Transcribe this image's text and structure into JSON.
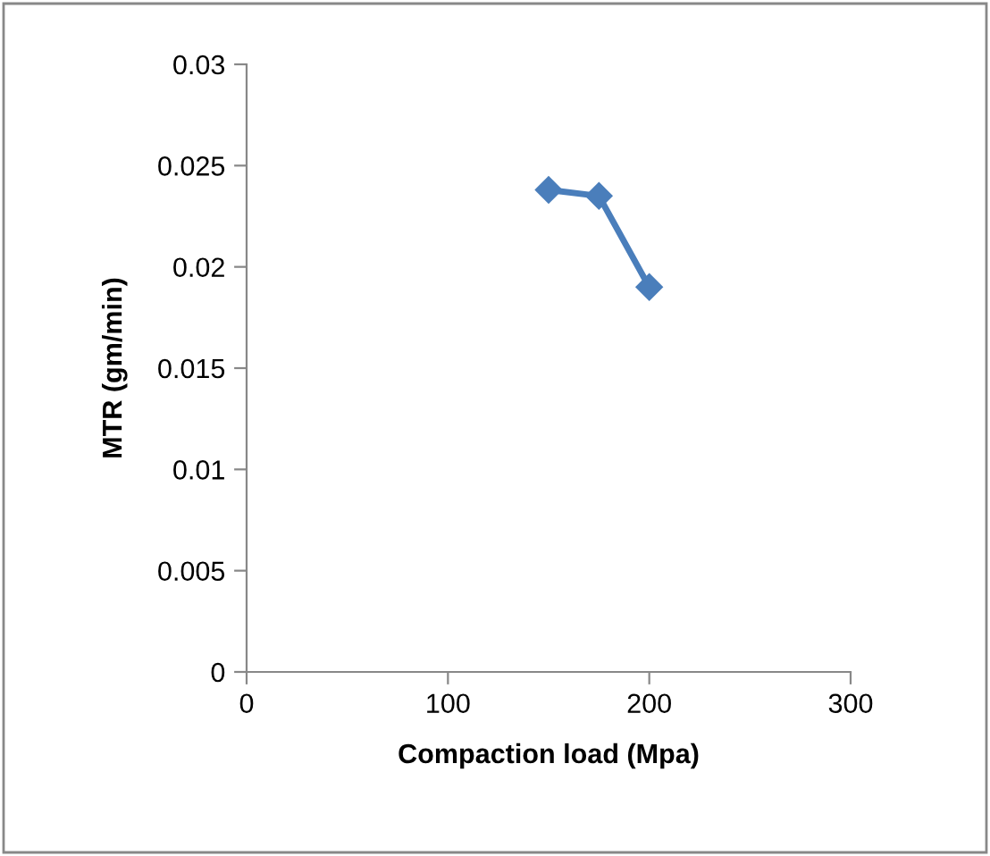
{
  "chart_data": {
    "type": "line",
    "xlabel": "Compaction load (Mpa)",
    "ylabel": "MTR (gm/min)",
    "x": [
      150,
      175,
      200
    ],
    "series": [
      {
        "color": "#4a7ebb",
        "values": [
          0.0238,
          0.0235,
          0.019
        ]
      }
    ],
    "xlim": [
      0,
      300
    ],
    "xticks": [
      0,
      100,
      200,
      300
    ],
    "ylim": [
      0,
      0.03
    ],
    "yticks": [
      0,
      0.005,
      0.01,
      0.015,
      0.02,
      0.025,
      0.03
    ],
    "marker": "diamond",
    "line_style": "solid",
    "grid": false
  }
}
